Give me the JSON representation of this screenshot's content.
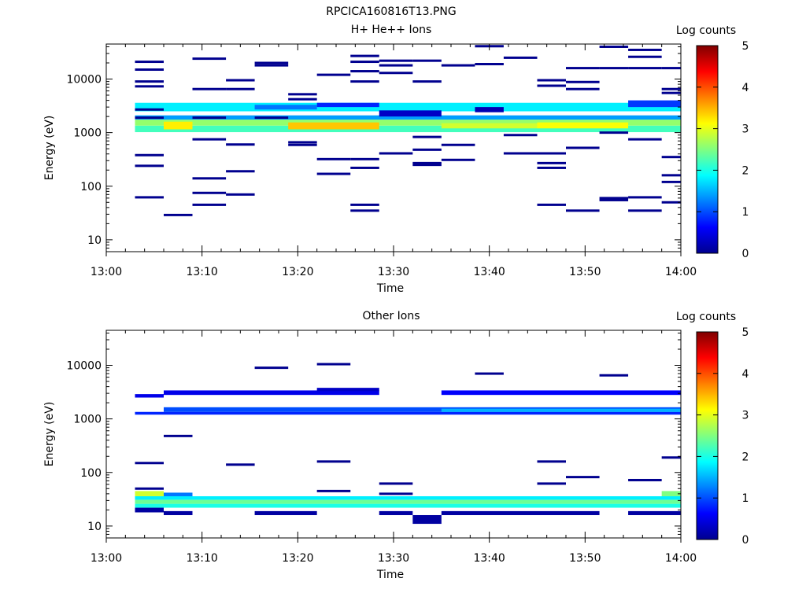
{
  "figure_title": "RPCICA160816T13.PNG",
  "colormap": [
    "#00008f",
    "#0000ff",
    "#0080ff",
    "#00ffff",
    "#80ff80",
    "#ffff00",
    "#ff8000",
    "#ff0000",
    "#800000"
  ],
  "chart_data": [
    {
      "type": "heatmap",
      "title": "H+ He++ Ions",
      "xlabel": "Time",
      "ylabel": "Energy (eV)",
      "x_range_minutes": [
        0,
        60
      ],
      "x_ticks": [
        "13:00",
        "13:10",
        "13:20",
        "13:30",
        "13:40",
        "13:50",
        "14:00"
      ],
      "y_scale": "log",
      "ylim": [
        6,
        45000
      ],
      "y_ticks": [
        "10",
        "100",
        "1000",
        "10000"
      ],
      "colorbar": {
        "label": "Log counts",
        "range": [
          0,
          5
        ],
        "ticks": [
          "0",
          "1",
          "2",
          "3",
          "4",
          "5"
        ]
      },
      "time_bins_minutes": [
        3,
        6,
        9,
        12.5,
        15.5,
        19,
        22,
        25.5,
        28.5,
        32,
        35,
        38.5,
        41.5,
        45,
        48,
        51.5,
        54.5,
        58,
        60
      ],
      "cells": [
        {
          "t0": 3,
          "t1": 60,
          "e0": 1020,
          "e1": 1350,
          "v": 2.2
        },
        {
          "t0": 3,
          "t1": 60,
          "e0": 1350,
          "e1": 1750,
          "v": 2.6
        },
        {
          "t0": 3,
          "t1": 60,
          "e0": 1750,
          "e1": 2100,
          "v": 1.4
        },
        {
          "t0": 3,
          "t1": 60,
          "e0": 2500,
          "e1": 3600,
          "v": 1.8
        },
        {
          "t0": 6,
          "t1": 9,
          "e0": 1150,
          "e1": 1600,
          "v": 3.2
        },
        {
          "t0": 19,
          "t1": 28.5,
          "e0": 1150,
          "e1": 1550,
          "v": 3.4
        },
        {
          "t0": 45,
          "t1": 54.5,
          "e0": 1200,
          "e1": 1550,
          "v": 3.1
        },
        {
          "t0": 35,
          "t1": 45,
          "e0": 1200,
          "e1": 1500,
          "v": 2.9
        },
        {
          "t0": 28.5,
          "t1": 35,
          "e0": 2000,
          "e1": 2600,
          "v": 0.3
        },
        {
          "t0": 22,
          "t1": 28.5,
          "e0": 3000,
          "e1": 3600,
          "v": 0.8
        },
        {
          "t0": 15.5,
          "t1": 22,
          "e0": 2700,
          "e1": 3300,
          "v": 1.2
        },
        {
          "t0": 38.5,
          "t1": 41.5,
          "e0": 2400,
          "e1": 3000,
          "v": 0.2
        },
        {
          "t0": 54.5,
          "t1": 60,
          "e0": 3000,
          "e1": 4000,
          "v": 0.9
        }
      ],
      "sparse_bins": [
        {
          "t": 3,
          "e": [
            21000,
            15000,
            9000,
            7300,
            2700,
            1900,
            380,
            240,
            62
          ]
        },
        {
          "t": 6,
          "e": [
            29
          ]
        },
        {
          "t": 9,
          "e": [
            24000,
            6500,
            1900,
            750,
            140,
            75,
            45
          ]
        },
        {
          "t": 12.5,
          "e": [
            9500,
            6500,
            600,
            190,
            70
          ]
        },
        {
          "t": 15.5,
          "e": [
            20000,
            18000,
            1900
          ]
        },
        {
          "t": 19,
          "e": [
            5200,
            4200,
            660,
            590
          ]
        },
        {
          "t": 22,
          "e": [
            12000,
            320,
            170
          ]
        },
        {
          "t": 25.5,
          "e": [
            27000,
            21000,
            14000,
            9000,
            320,
            220,
            45,
            35
          ]
        },
        {
          "t": 28.5,
          "e": [
            22000,
            18000,
            13000,
            410
          ]
        },
        {
          "t": 32,
          "e": [
            22000,
            9000,
            830,
            480,
            270,
            250
          ]
        },
        {
          "t": 35,
          "e": [
            18000,
            590,
            310
          ]
        },
        {
          "t": 38.5,
          "e": [
            41000,
            19000
          ]
        },
        {
          "t": 41.5,
          "e": [
            25000,
            900,
            410
          ]
        },
        {
          "t": 45,
          "e": [
            9500,
            7500,
            410,
            270,
            220,
            45
          ]
        },
        {
          "t": 48,
          "e": [
            16000,
            8800,
            6500,
            520,
            35
          ]
        },
        {
          "t": 51.5,
          "e": [
            40000,
            16000,
            1000,
            60,
            55
          ]
        },
        {
          "t": 54.5,
          "e": [
            35000,
            26000,
            16000,
            750,
            62,
            35
          ]
        },
        {
          "t": 58,
          "e": [
            16000,
            6500,
            5500,
            350,
            160,
            120,
            50
          ]
        }
      ]
    },
    {
      "type": "heatmap",
      "title": "Other Ions",
      "xlabel": "Time",
      "ylabel": "Energy (eV)",
      "x_range_minutes": [
        0,
        60
      ],
      "x_ticks": [
        "13:00",
        "13:10",
        "13:20",
        "13:30",
        "13:40",
        "13:50",
        "14:00"
      ],
      "y_scale": "log",
      "ylim": [
        6,
        45000
      ],
      "y_ticks": [
        "10",
        "100",
        "1000",
        "10000"
      ],
      "colorbar": {
        "label": "Log counts",
        "range": [
          0,
          5
        ],
        "ticks": [
          "0",
          "1",
          "2",
          "3",
          "4",
          "5"
        ]
      },
      "cells": [
        {
          "t0": 3,
          "t1": 60,
          "e0": 1200,
          "e1": 1350,
          "v": 0.8
        },
        {
          "t0": 6,
          "t1": 60,
          "e0": 1350,
          "e1": 1650,
          "v": 1.0
        },
        {
          "t0": 35,
          "t1": 60,
          "e0": 1350,
          "e1": 1550,
          "v": 1.5
        },
        {
          "t0": 3,
          "t1": 6,
          "e0": 2500,
          "e1": 2900,
          "v": 0.5
        },
        {
          "t0": 6,
          "t1": 28.5,
          "e0": 2800,
          "e1": 3400,
          "v": 0.5
        },
        {
          "t0": 35,
          "t1": 60,
          "e0": 2800,
          "e1": 3400,
          "v": 0.6
        },
        {
          "t0": 22,
          "t1": 28.5,
          "e0": 3300,
          "e1": 3800,
          "v": 0.3
        },
        {
          "t0": 3,
          "t1": 60,
          "e0": 22,
          "e1": 26,
          "v": 2.0
        },
        {
          "t0": 3,
          "t1": 60,
          "e0": 26,
          "e1": 31,
          "v": 2.4
        },
        {
          "t0": 3,
          "t1": 60,
          "e0": 31,
          "e1": 36,
          "v": 1.8
        },
        {
          "t0": 3,
          "t1": 6,
          "e0": 36,
          "e1": 45,
          "v": 2.9
        },
        {
          "t0": 58,
          "t1": 60,
          "e0": 36,
          "e1": 45,
          "v": 2.5
        },
        {
          "t0": 6,
          "t1": 9,
          "e0": 36,
          "e1": 42,
          "v": 1.2
        },
        {
          "t0": 3,
          "t1": 6,
          "e0": 18,
          "e1": 22,
          "v": 0.1
        },
        {
          "t0": 6,
          "t1": 9,
          "e0": 16,
          "e1": 19,
          "v": 0.1
        },
        {
          "t0": 15.5,
          "t1": 22,
          "e0": 16,
          "e1": 19,
          "v": 0.1
        },
        {
          "t0": 28.5,
          "t1": 32,
          "e0": 16,
          "e1": 19,
          "v": 0.1
        },
        {
          "t0": 32,
          "t1": 35,
          "e0": 11,
          "e1": 16,
          "v": 0.1
        },
        {
          "t0": 35,
          "t1": 51.5,
          "e0": 16,
          "e1": 19,
          "v": 0.1
        },
        {
          "t0": 54.5,
          "t1": 60,
          "e0": 16,
          "e1": 19,
          "v": 0.1
        }
      ],
      "sparse_bins": [
        {
          "t": 3,
          "e": [
            150,
            50
          ]
        },
        {
          "t": 6,
          "e": [
            480
          ]
        },
        {
          "t": 12.5,
          "e": [
            140
          ]
        },
        {
          "t": 15.5,
          "e": [
            9000
          ]
        },
        {
          "t": 22,
          "e": [
            10500,
            160,
            45
          ]
        },
        {
          "t": 28.5,
          "e": [
            62,
            40
          ]
        },
        {
          "t": 38.5,
          "e": [
            7000
          ]
        },
        {
          "t": 45,
          "e": [
            160,
            62
          ]
        },
        {
          "t": 48,
          "e": [
            82
          ]
        },
        {
          "t": 51.5,
          "e": [
            6500
          ]
        },
        {
          "t": 54.5,
          "e": [
            72
          ]
        },
        {
          "t": 58,
          "e": [
            190
          ]
        }
      ]
    }
  ]
}
